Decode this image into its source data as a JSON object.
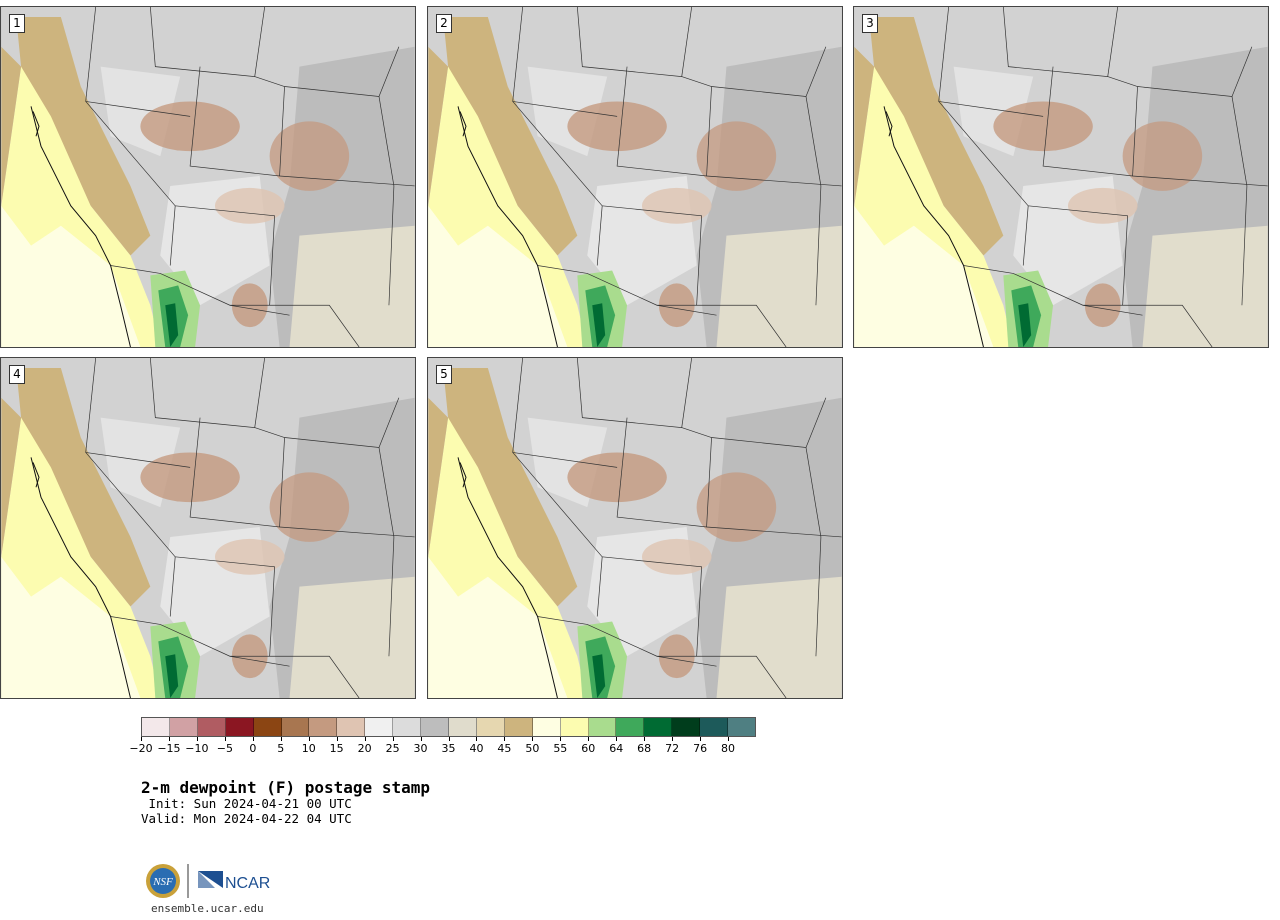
{
  "panels": [
    {
      "label": "1"
    },
    {
      "label": "2"
    },
    {
      "label": "3"
    },
    {
      "label": "4"
    },
    {
      "label": "5"
    }
  ],
  "colorbar": {
    "colors": [
      "#f3e8ea",
      "#d1a1a4",
      "#b05c62",
      "#8b1622",
      "#8b4513",
      "#a87650",
      "#c49a80",
      "#dfc4b2",
      "#f0f0f0",
      "#dcdcdc",
      "#bdbdbd",
      "#e0dccc",
      "#e6d7b0",
      "#cdb47e",
      "#fefee2",
      "#fcfcb0",
      "#a9dc8e",
      "#3fa95b",
      "#006b33",
      "#003d1c",
      "#1d5a5a",
      "#4f7f82"
    ],
    "ticks": [
      "-20",
      "-15",
      "-10",
      "-5",
      "0",
      "5",
      "10",
      "15",
      "20",
      "25",
      "30",
      "35",
      "40",
      "45",
      "50",
      "55",
      "60",
      "64",
      "68",
      "72",
      "76",
      "80"
    ]
  },
  "title": "2-m dewpoint (F) postage stamp",
  "init": " Init: Sun 2024-04-21 00 UTC",
  "valid": "Valid: Mon 2024-04-22 04 UTC",
  "logos": {
    "nsf": "NSF",
    "ncar": "NCAR"
  },
  "url": "ensemble.ucar.edu"
}
